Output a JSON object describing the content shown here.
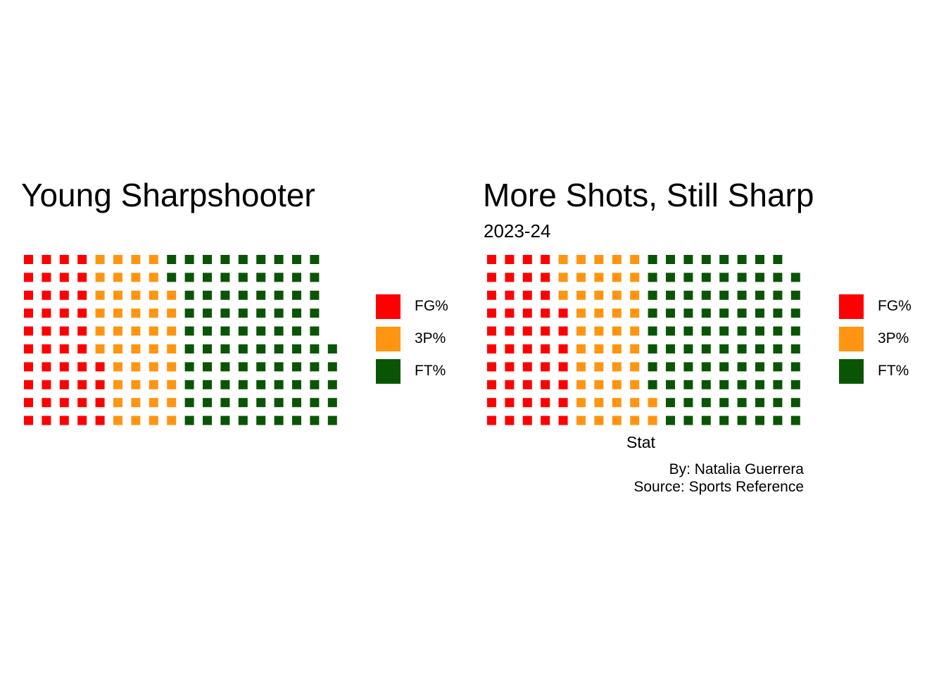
{
  "colors": {
    "FG%": "#ff0000",
    "3P%": "#ff9510",
    "FT%": "#0a5505"
  },
  "chart_data": [
    {
      "type": "waffle",
      "title": "Young Sharpshooter",
      "subtitle": "",
      "xlabel": "",
      "legend_position": "right",
      "grid_rows": 10,
      "categories": [
        "FG%",
        "3P%",
        "FT%"
      ],
      "values": [
        44,
        44,
        87
      ]
    },
    {
      "type": "waffle",
      "title": "More Shots, Still Sharp",
      "subtitle": "2023-24",
      "xlabel": "Stat",
      "legend_position": "right",
      "grid_rows": 10,
      "categories": [
        "FG%",
        "3P%",
        "FT%"
      ],
      "values": [
        47,
        45,
        87
      ]
    }
  ],
  "caption": {
    "line1": "By: Natalia Guerrera",
    "line2": "Source: Sports Reference"
  }
}
